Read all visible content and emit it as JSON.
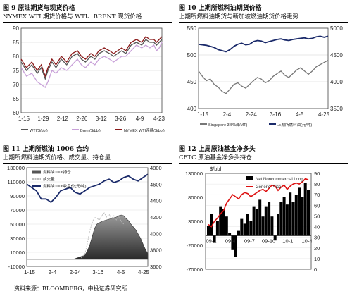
{
  "source_note": "资料来源：BLOOMBERG，中投证券研究所",
  "chart_data": [
    {
      "type": "line",
      "caption": "图 9 原油期货与现货价格",
      "subtitle": "NYMEX WTI 期货价格与 WTI、BRENT 现货价格",
      "ylim": [
        60,
        90
      ],
      "yticks": [
        60,
        65,
        70,
        75,
        80,
        85,
        90
      ],
      "x_tick_labels": [
        "1-15",
        "1-29",
        "2-12",
        "2-26",
        "3-12",
        "3-26",
        "4-9",
        "4-23"
      ],
      "series": [
        {
          "name": "WTI($/bbl)",
          "color": "#555555",
          "x": [
            0,
            4,
            8,
            12,
            15,
            18,
            20,
            23,
            26,
            30,
            34,
            38,
            42,
            45,
            48,
            52,
            55,
            58,
            62,
            66,
            69,
            72,
            75,
            78,
            82,
            86,
            90,
            93,
            96,
            99,
            101,
            103,
            105
          ],
          "values": [
            78,
            75,
            77,
            74,
            76,
            72,
            75,
            78,
            76,
            79,
            77,
            80,
            81,
            79,
            78,
            80,
            79,
            81,
            82,
            81,
            80,
            81,
            82,
            81,
            84,
            85,
            84,
            86,
            85,
            85,
            84,
            85,
            86
          ]
        },
        {
          "name": "Brent($/bbl)",
          "color": "#c8a0d8",
          "x": [
            0,
            4,
            8,
            12,
            15,
            18,
            20,
            23,
            26,
            30,
            34,
            38,
            42,
            45,
            48,
            52,
            55,
            58,
            62,
            66,
            69,
            72,
            75,
            78,
            82,
            86,
            90,
            93,
            96,
            99,
            101,
            103,
            105
          ],
          "values": [
            76,
            73,
            74,
            71,
            70,
            69,
            71,
            75,
            74,
            76,
            75,
            77,
            79,
            77,
            76,
            78,
            77,
            79,
            80,
            79,
            78,
            79,
            80,
            80,
            82,
            84,
            83,
            84,
            83,
            84,
            82,
            83,
            85
          ]
        },
        {
          "name": "NYMEX WTI连续($/bbl)",
          "color": "#8a1a1a",
          "x": [
            0,
            4,
            8,
            12,
            15,
            18,
            20,
            23,
            26,
            30,
            34,
            38,
            42,
            45,
            48,
            52,
            55,
            58,
            62,
            66,
            69,
            72,
            75,
            78,
            82,
            86,
            90,
            93,
            96,
            99,
            101,
            103,
            105
          ],
          "values": [
            79,
            76,
            78,
            75,
            77,
            73,
            76,
            79,
            77,
            80,
            78,
            81,
            82,
            80,
            79,
            81,
            80,
            82,
            83,
            82,
            81,
            82,
            83,
            82,
            85,
            86,
            85,
            87,
            86,
            86,
            85,
            86,
            87
          ]
        }
      ]
    },
    {
      "type": "line",
      "caption": "图 10 上期所燃料油期货价格",
      "subtitle": "上期所燃料油期货与新加坡燃油期货价格走势",
      "ylim_left": [
        400,
        550
      ],
      "yticks_left": [
        400,
        450,
        500,
        550
      ],
      "ylim_right": [
        3500,
        5000
      ],
      "yticks_right": [
        3500,
        4000,
        4500,
        5000
      ],
      "x_tick_labels": [
        "1-15",
        "2-4",
        "2-24",
        "3-16",
        "4-5",
        "4-25"
      ],
      "series": [
        {
          "name": "Singapore 3.5%($/MT)",
          "color": "#777777",
          "axis": "left",
          "x": [
            0,
            3,
            6,
            9,
            12,
            15,
            18,
            21,
            24,
            27,
            30,
            33,
            36,
            39,
            42,
            45,
            48,
            51,
            54,
            57,
            60,
            63,
            66,
            69,
            72,
            75,
            78,
            81,
            84,
            87,
            90,
            93,
            96,
            99
          ],
          "values": [
            470,
            460,
            452,
            455,
            445,
            440,
            432,
            428,
            436,
            445,
            448,
            442,
            438,
            445,
            452,
            458,
            455,
            448,
            452,
            460,
            465,
            470,
            462,
            458,
            465,
            472,
            476,
            470,
            464,
            470,
            478,
            482,
            486,
            490
          ]
        },
        {
          "name": "上期所燃料油(元/吨)",
          "color": "#1a2a6a",
          "axis": "right",
          "x": [
            0,
            3,
            6,
            9,
            12,
            15,
            18,
            21,
            24,
            27,
            30,
            33,
            36,
            39,
            42,
            45,
            48,
            51,
            54,
            57,
            60,
            63,
            66,
            69,
            72,
            75,
            78,
            81,
            84,
            87,
            90,
            93,
            96,
            99
          ],
          "values": [
            4700,
            4690,
            4680,
            4660,
            4640,
            4600,
            4580,
            4560,
            4600,
            4660,
            4700,
            4720,
            4690,
            4700,
            4750,
            4770,
            4760,
            4730,
            4750,
            4770,
            4790,
            4800,
            4780,
            4770,
            4790,
            4800,
            4810,
            4820,
            4800,
            4810,
            4840,
            4850,
            4830,
            4850
          ]
        }
      ]
    },
    {
      "type": "line",
      "caption": "图 11 上期所燃油 1006 合约",
      "subtitle": "上期所燃料油期货价格、成交量、持仓量",
      "ylim_left": [
        -10000,
        130000
      ],
      "yticks_left": [
        -10000,
        10000,
        30000,
        50000,
        70000,
        90000,
        110000,
        130000
      ],
      "ylim_right": [
        3600,
        4800
      ],
      "yticks_right": [
        3600,
        3800,
        4000,
        4200,
        4400,
        4600,
        4800
      ],
      "x_tick_labels": [
        "1-15",
        "2-4",
        "2-24",
        "3-16",
        "4-5",
        "4-25"
      ],
      "series": [
        {
          "name": "燃料油1006持仓",
          "color": "#555555",
          "axis": "left",
          "style": "area",
          "x": [
            0,
            38,
            48,
            50,
            52,
            54,
            56,
            58,
            60,
            62,
            64,
            66,
            68,
            70,
            72,
            74,
            76,
            78,
            80,
            82,
            84,
            86,
            88,
            90,
            92,
            94,
            96,
            98,
            100
          ],
          "values": [
            0,
            0,
            6000,
            12000,
            20000,
            32000,
            44000,
            50000,
            52000,
            54000,
            55000,
            56000,
            57000,
            58000,
            59000,
            60000,
            62000,
            63000,
            62000,
            58000,
            55000,
            50000,
            46000,
            42000,
            36000,
            30000,
            22000,
            14000,
            8000
          ]
        },
        {
          "name": "成交量",
          "color": "#333333",
          "axis": "left",
          "style": "dashed",
          "x": [
            45,
            48,
            50,
            52,
            54,
            56,
            58,
            60,
            62,
            64,
            66,
            68,
            70,
            72,
            74,
            76,
            78,
            80
          ],
          "values": [
            2000,
            8000,
            22000,
            40000,
            52000,
            60000,
            58000,
            56000,
            62000,
            66000,
            60000,
            64000,
            58000,
            62000,
            56000,
            60000,
            54000,
            50000
          ]
        },
        {
          "name": "燃料油1006收盘价(元/吨)",
          "color": "#1a2a6a",
          "axis": "right",
          "x": [
            0,
            4,
            8,
            12,
            16,
            20,
            24,
            28,
            32,
            36,
            40,
            44,
            48,
            52,
            56,
            60,
            64,
            68,
            72,
            76,
            80,
            84,
            88,
            92,
            96,
            100
          ],
          "values": [
            4600,
            4560,
            4520,
            4420,
            4420,
            4380,
            4440,
            4520,
            4540,
            4560,
            4500,
            4480,
            4520,
            4560,
            4580,
            4600,
            4640,
            4660,
            4620,
            4640,
            4680,
            4700,
            4660,
            4640,
            4680,
            4720
          ]
        }
      ]
    },
    {
      "type": "bar",
      "caption": "图 12 上周原油基金净多头",
      "subtitle": "CFTC 原油基金净多头持仓",
      "ylabel_left": "$/bbl",
      "ylim_left": [
        -70000,
        130000
      ],
      "yticks_left": [
        -70000,
        -20000,
        30000,
        80000,
        130000
      ],
      "ylim_right": [
        0,
        90
      ],
      "yticks_right": [
        0,
        10,
        20,
        30,
        40,
        50,
        60,
        70,
        80,
        90
      ],
      "x_tick_labels": [
        "09-1",
        "09-4",
        "09-7",
        "09-10",
        "10-1",
        "10-4"
      ],
      "series": [
        {
          "name": "Net Noncommercial Long",
          "color": "#000000",
          "axis": "left",
          "style": "bar",
          "x": [
            0,
            3,
            6,
            9,
            12,
            15,
            18,
            21,
            24,
            27,
            30,
            33,
            36,
            39,
            42,
            45,
            48,
            51,
            54,
            57,
            60,
            63,
            66,
            69,
            72,
            75,
            78,
            81,
            84,
            87,
            90,
            93,
            96,
            99
          ],
          "values": [
            20000,
            45000,
            -15000,
            30000,
            60000,
            55000,
            40000,
            5000,
            -30000,
            -45000,
            10000,
            35000,
            25000,
            45000,
            30000,
            60000,
            55000,
            75000,
            40000,
            60000,
            70000,
            40000,
            -10000,
            45000,
            70000,
            80000,
            65000,
            90000,
            70000,
            85000,
            100000,
            80000,
            110000,
            95000
          ]
        },
        {
          "name": "Generic Price",
          "color": "#dd1111",
          "axis": "right",
          "style": "line",
          "x": [
            0,
            3,
            6,
            9,
            12,
            15,
            18,
            21,
            24,
            27,
            30,
            33,
            36,
            39,
            42,
            45,
            48,
            51,
            54,
            57,
            60,
            63,
            66,
            69,
            72,
            75,
            78,
            81,
            84,
            87,
            90,
            93,
            96,
            99
          ],
          "values": [
            42,
            40,
            45,
            48,
            52,
            55,
            62,
            66,
            70,
            68,
            66,
            70,
            72,
            71,
            68,
            70,
            72,
            74,
            75,
            73,
            76,
            79,
            78,
            74,
            77,
            79,
            75,
            78,
            80,
            81,
            80,
            82,
            85,
            84
          ]
        }
      ]
    }
  ]
}
